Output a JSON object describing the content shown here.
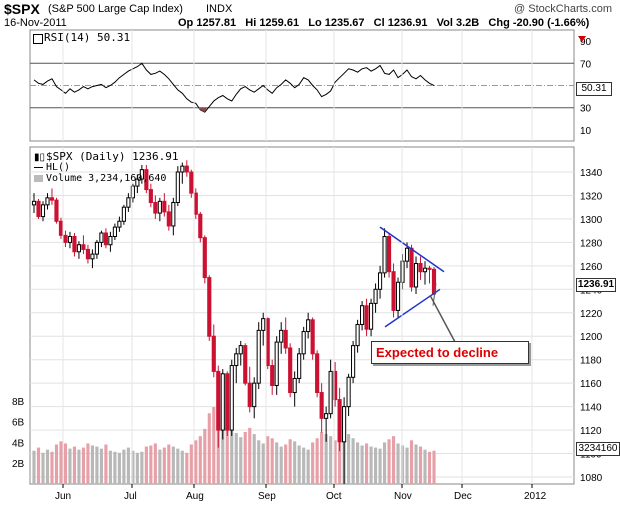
{
  "header": {
    "symbol": "$SPX",
    "name": "(S&P 500 Large Cap Index)",
    "exchange": "INDX",
    "watermark": "@ StockCharts.com",
    "date": "16-Nov-2011",
    "stats": "Op 1257.81   Hi 1259.61   Lo 1235.67   Cl 1236.91   Vol 3.2B   Chg -20.90 (-1.66%)",
    "dropdown_icon": "triangle-down-icon"
  },
  "rsi_panel": {
    "label": "RSI(14) 50.31",
    "current_value": "50.31",
    "ticks": [
      "90",
      "70",
      "50",
      "30",
      "10"
    ]
  },
  "price_panel": {
    "label": "$SPX (Daily) 1236.91",
    "hl_label": "HL()",
    "volume_label": "Volume 3,234,160,640",
    "current_price": "1236.91",
    "current_volume": "3234160",
    "ticks": [
      "1340",
      "1320",
      "1300",
      "1280",
      "1260",
      "1240",
      "1220",
      "1200",
      "1180",
      "1160",
      "1140",
      "1120",
      "1100",
      "1080"
    ],
    "volume_ticks": [
      "8B",
      "6B",
      "4B",
      "2B"
    ],
    "months": [
      "Jun",
      "Jul",
      "Aug",
      "Sep",
      "Oct",
      "Nov",
      "Dec",
      "2012"
    ],
    "annotation": "Expected to decline"
  },
  "colors": {
    "up": "#000000",
    "down": "#cc1133",
    "volume_up": "#b8b8b8",
    "volume_down": "#e8a0a8",
    "pattern": "#2233cc",
    "annotation": "#dd0000",
    "arrow": "#555555"
  },
  "chart_data": {
    "type": "candlestick",
    "title": "$SPX (S&P 500 Large Cap Index) INDX",
    "rsi_range": [
      0,
      100
    ],
    "price_range": [
      1070,
      1355
    ],
    "volume_range": [
      0,
      10
    ],
    "rsi": [
      [
        1,
        55
      ],
      [
        2,
        52
      ],
      [
        3,
        51
      ],
      [
        4,
        54
      ],
      [
        5,
        56
      ],
      [
        6,
        49
      ],
      [
        7,
        46
      ],
      [
        8,
        43
      ],
      [
        9,
        47
      ],
      [
        10,
        44
      ],
      [
        11,
        46
      ],
      [
        12,
        49
      ],
      [
        13,
        47
      ],
      [
        14,
        49
      ],
      [
        15,
        50
      ],
      [
        16,
        51
      ],
      [
        17,
        48
      ],
      [
        18,
        50
      ],
      [
        19,
        53
      ],
      [
        20,
        57
      ],
      [
        21,
        60
      ],
      [
        22,
        63
      ],
      [
        23,
        65
      ],
      [
        24,
        67
      ],
      [
        25,
        70
      ],
      [
        26,
        64
      ],
      [
        27,
        60
      ],
      [
        28,
        61
      ],
      [
        29,
        63
      ],
      [
        30,
        60
      ],
      [
        31,
        56
      ],
      [
        32,
        51
      ],
      [
        33,
        46
      ],
      [
        34,
        43
      ],
      [
        35,
        38
      ],
      [
        36,
        35
      ],
      [
        37,
        34
      ],
      [
        38,
        28
      ],
      [
        39,
        26
      ],
      [
        40,
        31
      ],
      [
        41,
        36
      ],
      [
        42,
        39
      ],
      [
        43,
        41
      ],
      [
        44,
        38
      ],
      [
        45,
        36
      ],
      [
        46,
        42
      ],
      [
        47,
        47
      ],
      [
        48,
        49
      ],
      [
        49,
        46
      ],
      [
        50,
        44
      ],
      [
        51,
        47
      ],
      [
        52,
        50
      ],
      [
        53,
        46
      ],
      [
        54,
        43
      ],
      [
        55,
        48
      ],
      [
        56,
        51
      ],
      [
        57,
        55
      ],
      [
        58,
        52
      ],
      [
        59,
        48
      ],
      [
        60,
        51
      ],
      [
        61,
        57
      ],
      [
        62,
        55
      ],
      [
        63,
        50
      ],
      [
        64,
        46
      ],
      [
        65,
        40
      ],
      [
        66,
        42
      ],
      [
        67,
        45
      ],
      [
        68,
        53
      ],
      [
        69,
        57
      ],
      [
        70,
        61
      ],
      [
        71,
        65
      ],
      [
        72,
        64
      ],
      [
        73,
        62
      ],
      [
        74,
        65
      ],
      [
        75,
        66
      ],
      [
        76,
        63
      ],
      [
        77,
        65
      ],
      [
        78,
        68
      ],
      [
        79,
        61
      ],
      [
        80,
        60
      ],
      [
        81,
        64
      ],
      [
        82,
        57
      ],
      [
        83,
        60
      ],
      [
        84,
        64
      ],
      [
        85,
        58
      ],
      [
        86,
        56
      ],
      [
        87,
        59
      ],
      [
        88,
        55
      ],
      [
        89,
        52
      ],
      [
        90,
        50
      ]
    ],
    "candles": [
      [
        1,
        1312,
        1322,
        1305,
        1315
      ],
      [
        2,
        1315,
        1317,
        1300,
        1302
      ],
      [
        3,
        1302,
        1315,
        1298,
        1312
      ],
      [
        4,
        1312,
        1322,
        1308,
        1318
      ],
      [
        5,
        1318,
        1326,
        1312,
        1316
      ],
      [
        6,
        1316,
        1318,
        1296,
        1298
      ],
      [
        7,
        1298,
        1301,
        1283,
        1286
      ],
      [
        8,
        1286,
        1290,
        1276,
        1280
      ],
      [
        9,
        1280,
        1289,
        1275,
        1285
      ],
      [
        10,
        1285,
        1288,
        1268,
        1272
      ],
      [
        11,
        1272,
        1281,
        1266,
        1278
      ],
      [
        12,
        1278,
        1286,
        1270,
        1274
      ],
      [
        13,
        1274,
        1278,
        1262,
        1266
      ],
      [
        14,
        1266,
        1274,
        1258,
        1270
      ],
      [
        15,
        1270,
        1282,
        1266,
        1280
      ],
      [
        16,
        1280,
        1290,
        1276,
        1288
      ],
      [
        17,
        1288,
        1292,
        1275,
        1278
      ],
      [
        18,
        1278,
        1289,
        1272,
        1285
      ],
      [
        19,
        1285,
        1296,
        1282,
        1293
      ],
      [
        20,
        1293,
        1302,
        1289,
        1298
      ],
      [
        21,
        1298,
        1312,
        1295,
        1310
      ],
      [
        22,
        1310,
        1322,
        1306,
        1318
      ],
      [
        23,
        1318,
        1330,
        1314,
        1328
      ],
      [
        24,
        1328,
        1338,
        1322,
        1334
      ],
      [
        25,
        1334,
        1346,
        1330,
        1342
      ],
      [
        26,
        1342,
        1346,
        1322,
        1325
      ],
      [
        27,
        1325,
        1330,
        1310,
        1314
      ],
      [
        28,
        1314,
        1320,
        1300,
        1305
      ],
      [
        29,
        1305,
        1318,
        1298,
        1315
      ],
      [
        30,
        1315,
        1322,
        1302,
        1306
      ],
      [
        31,
        1306,
        1312,
        1290,
        1294
      ],
      [
        32,
        1294,
        1318,
        1286,
        1314
      ],
      [
        33,
        1314,
        1345,
        1311,
        1340
      ],
      [
        34,
        1340,
        1348,
        1330,
        1345
      ],
      [
        35,
        1345,
        1350,
        1336,
        1340
      ],
      [
        36,
        1340,
        1342,
        1318,
        1322
      ],
      [
        37,
        1322,
        1326,
        1300,
        1304
      ],
      [
        38,
        1304,
        1306,
        1280,
        1284
      ],
      [
        39,
        1284,
        1286,
        1245,
        1250
      ],
      [
        40,
        1250,
        1252,
        1196,
        1200
      ],
      [
        41,
        1200,
        1210,
        1165,
        1170
      ],
      [
        42,
        1170,
        1175,
        1105,
        1120
      ],
      [
        43,
        1120,
        1172,
        1112,
        1168
      ],
      [
        44,
        1168,
        1170,
        1115,
        1120
      ],
      [
        45,
        1120,
        1180,
        1115,
        1175
      ],
      [
        46,
        1175,
        1190,
        1160,
        1185
      ],
      [
        47,
        1185,
        1196,
        1175,
        1192
      ],
      [
        48,
        1192,
        1194,
        1158,
        1160
      ],
      [
        49,
        1160,
        1174,
        1135,
        1140
      ],
      [
        50,
        1140,
        1165,
        1130,
        1160
      ],
      [
        51,
        1160,
        1212,
        1155,
        1205
      ],
      [
        52,
        1205,
        1220,
        1192,
        1215
      ],
      [
        53,
        1215,
        1216,
        1172,
        1175
      ],
      [
        54,
        1175,
        1180,
        1150,
        1158
      ],
      [
        55,
        1158,
        1200,
        1150,
        1195
      ],
      [
        56,
        1195,
        1212,
        1185,
        1205
      ],
      [
        57,
        1205,
        1216,
        1185,
        1190
      ],
      [
        58,
        1190,
        1194,
        1148,
        1152
      ],
      [
        59,
        1152,
        1170,
        1140,
        1164
      ],
      [
        60,
        1164,
        1190,
        1160,
        1185
      ],
      [
        61,
        1185,
        1208,
        1180,
        1204
      ],
      [
        62,
        1204,
        1220,
        1198,
        1214
      ],
      [
        63,
        1214,
        1216,
        1180,
        1185
      ],
      [
        64,
        1185,
        1188,
        1148,
        1152
      ],
      [
        65,
        1152,
        1160,
        1118,
        1130
      ],
      [
        66,
        1130,
        1140,
        1110,
        1134
      ],
      [
        67,
        1134,
        1180,
        1130,
        1170
      ],
      [
        68,
        1170,
        1178,
        1140,
        1146
      ],
      [
        69,
        1146,
        1156,
        1102,
        1110
      ],
      [
        70,
        1110,
        1148,
        1074,
        1140
      ],
      [
        71,
        1140,
        1168,
        1132,
        1165
      ],
      [
        72,
        1165,
        1196,
        1160,
        1192
      ],
      [
        73,
        1192,
        1214,
        1186,
        1210
      ],
      [
        74,
        1210,
        1230,
        1205,
        1226
      ],
      [
        75,
        1226,
        1232,
        1200,
        1206
      ],
      [
        76,
        1206,
        1232,
        1200,
        1228
      ],
      [
        77,
        1228,
        1245,
        1220,
        1240
      ],
      [
        78,
        1240,
        1260,
        1232,
        1254
      ],
      [
        79,
        1254,
        1292,
        1250,
        1285
      ],
      [
        80,
        1285,
        1288,
        1250,
        1255
      ],
      [
        81,
        1255,
        1262,
        1216,
        1222
      ],
      [
        82,
        1222,
        1250,
        1215,
        1246
      ],
      [
        83,
        1246,
        1270,
        1240,
        1264
      ],
      [
        84,
        1264,
        1280,
        1258,
        1275
      ],
      [
        85,
        1275,
        1278,
        1238,
        1242
      ],
      [
        86,
        1242,
        1268,
        1236,
        1262
      ],
      [
        87,
        1262,
        1268,
        1248,
        1255
      ],
      [
        88,
        1255,
        1264,
        1244,
        1258
      ],
      [
        89,
        1258,
        1260,
        1245,
        1257
      ],
      [
        90,
        1257,
        1259,
        1235,
        1236
      ]
    ],
    "volume": [
      [
        1,
        3.2
      ],
      [
        2,
        3.5
      ],
      [
        3,
        3.0
      ],
      [
        4,
        3.3
      ],
      [
        5,
        3.1
      ],
      [
        6,
        3.8
      ],
      [
        7,
        4.1
      ],
      [
        8,
        3.9
      ],
      [
        9,
        3.4
      ],
      [
        10,
        3.6
      ],
      [
        11,
        3.3
      ],
      [
        12,
        3.5
      ],
      [
        13,
        3.9
      ],
      [
        14,
        3.7
      ],
      [
        15,
        3.6
      ],
      [
        16,
        3.4
      ],
      [
        17,
        3.8
      ],
      [
        18,
        3.2
      ],
      [
        19,
        3.1
      ],
      [
        20,
        3.0
      ],
      [
        21,
        3.3
      ],
      [
        22,
        3.5
      ],
      [
        23,
        3.2
      ],
      [
        24,
        3.0
      ],
      [
        25,
        3.1
      ],
      [
        26,
        3.6
      ],
      [
        27,
        3.7
      ],
      [
        28,
        3.9
      ],
      [
        29,
        3.3
      ],
      [
        30,
        3.5
      ],
      [
        31,
        3.8
      ],
      [
        32,
        3.6
      ],
      [
        33,
        3.4
      ],
      [
        34,
        3.2
      ],
      [
        35,
        3.0
      ],
      [
        36,
        3.8
      ],
      [
        37,
        4.2
      ],
      [
        38,
        4.6
      ],
      [
        39,
        5.3
      ],
      [
        40,
        6.8
      ],
      [
        41,
        7.4
      ],
      [
        42,
        8.4
      ],
      [
        43,
        6.4
      ],
      [
        44,
        6.0
      ],
      [
        45,
        5.6
      ],
      [
        46,
        4.9
      ],
      [
        47,
        4.5
      ],
      [
        48,
        5.0
      ],
      [
        49,
        5.4
      ],
      [
        50,
        4.8
      ],
      [
        51,
        4.2
      ],
      [
        52,
        3.9
      ],
      [
        53,
        4.6
      ],
      [
        54,
        4.4
      ],
      [
        55,
        4.0
      ],
      [
        56,
        3.6
      ],
      [
        57,
        3.8
      ],
      [
        58,
        4.3
      ],
      [
        59,
        4.1
      ],
      [
        60,
        3.7
      ],
      [
        61,
        3.5
      ],
      [
        62,
        3.3
      ],
      [
        63,
        4.0
      ],
      [
        64,
        4.4
      ],
      [
        65,
        5.0
      ],
      [
        66,
        4.8
      ],
      [
        67,
        4.6
      ],
      [
        68,
        4.2
      ],
      [
        69,
        5.2
      ],
      [
        70,
        6.0
      ],
      [
        71,
        4.8
      ],
      [
        72,
        4.4
      ],
      [
        73,
        4.0
      ],
      [
        74,
        3.7
      ],
      [
        75,
        3.9
      ],
      [
        76,
        3.6
      ],
      [
        77,
        3.5
      ],
      [
        78,
        3.4
      ],
      [
        79,
        4.0
      ],
      [
        80,
        4.3
      ],
      [
        81,
        4.6
      ],
      [
        82,
        3.9
      ],
      [
        83,
        3.7
      ],
      [
        84,
        3.5
      ],
      [
        85,
        4.2
      ],
      [
        86,
        3.8
      ],
      [
        87,
        3.6
      ],
      [
        88,
        3.3
      ],
      [
        89,
        3.1
      ],
      [
        90,
        3.2
      ]
    ],
    "triangle_upper": [
      [
        1,
        1293
      ],
      [
        5,
        1255
      ]
    ],
    "triangle_lower": [
      [
        1,
        1208
      ],
      [
        5,
        1240
      ]
    ]
  }
}
